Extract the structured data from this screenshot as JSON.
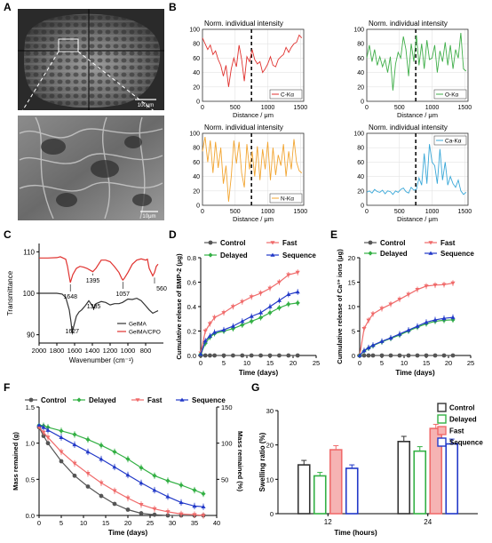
{
  "figure": {
    "panel_letters": [
      "A",
      "B",
      "C",
      "D",
      "E",
      "F",
      "G"
    ],
    "sem": {
      "scale_top": "100μm",
      "scale_bottom": "10μm"
    }
  },
  "chart_data": [
    {
      "panel": "B",
      "type": "line",
      "title": "Norm. individual intensity",
      "legend": "C-Kα",
      "color": "#e0322f",
      "xlabel": "Distance / μm",
      "xlim": [
        0,
        1550
      ],
      "ylim": [
        0,
        100
      ],
      "xticks": [
        0,
        500,
        1000,
        1500
      ],
      "yticks": [
        0,
        20,
        40,
        60,
        80,
        100
      ],
      "divider_x": 750,
      "x": [
        0,
        40,
        80,
        120,
        160,
        200,
        240,
        280,
        320,
        360,
        400,
        440,
        480,
        520,
        560,
        600,
        640,
        680,
        720,
        760,
        800,
        840,
        880,
        920,
        960,
        1000,
        1040,
        1080,
        1120,
        1160,
        1200,
        1240,
        1280,
        1320,
        1360,
        1400,
        1440,
        1480,
        1520
      ],
      "y": [
        88,
        80,
        72,
        78,
        65,
        70,
        58,
        50,
        35,
        50,
        20,
        45,
        60,
        48,
        78,
        58,
        28,
        62,
        55,
        72,
        58,
        52,
        55,
        40,
        45,
        52,
        62,
        50,
        48,
        58,
        62,
        65,
        75,
        68,
        75,
        80,
        82,
        92,
        88
      ]
    },
    {
      "panel": "B",
      "type": "line",
      "title": "Norm. individual intensity",
      "legend": "O-Kα",
      "color": "#3fae49",
      "xlabel": "Distance / μm",
      "xlim": [
        0,
        1550
      ],
      "ylim": [
        0,
        100
      ],
      "xticks": [
        0,
        500,
        1000,
        1500
      ],
      "yticks": [
        0,
        20,
        40,
        60,
        80,
        100
      ],
      "divider_x": 750,
      "x": [
        0,
        40,
        80,
        120,
        160,
        200,
        240,
        280,
        320,
        360,
        400,
        440,
        480,
        520,
        560,
        600,
        640,
        680,
        720,
        760,
        800,
        840,
        880,
        920,
        960,
        1000,
        1040,
        1080,
        1120,
        1160,
        1200,
        1240,
        1280,
        1320,
        1360,
        1400,
        1440,
        1480,
        1520
      ],
      "y": [
        60,
        78,
        55,
        72,
        50,
        62,
        48,
        58,
        40,
        62,
        15,
        52,
        68,
        60,
        90,
        72,
        35,
        80,
        55,
        92,
        50,
        80,
        45,
        85,
        58,
        60,
        78,
        40,
        70,
        55,
        82,
        50,
        78,
        45,
        72,
        60,
        95,
        45,
        42
      ]
    },
    {
      "panel": "B",
      "type": "line",
      "title": "Norm. individual intensity",
      "legend": "N-Kα",
      "color": "#f2a531",
      "xlabel": "Distance / μm",
      "xlim": [
        0,
        1550
      ],
      "ylim": [
        0,
        100
      ],
      "xticks": [
        0,
        500,
        1000,
        1500
      ],
      "yticks": [
        0,
        20,
        40,
        60,
        80,
        100
      ],
      "divider_x": 750,
      "x": [
        0,
        40,
        80,
        120,
        160,
        200,
        240,
        280,
        320,
        360,
        400,
        440,
        480,
        520,
        560,
        600,
        640,
        680,
        720,
        760,
        800,
        840,
        880,
        920,
        960,
        1000,
        1040,
        1080,
        1120,
        1160,
        1200,
        1240,
        1280,
        1320,
        1360,
        1400,
        1440,
        1480,
        1520
      ],
      "y": [
        75,
        95,
        60,
        90,
        45,
        88,
        52,
        80,
        30,
        55,
        5,
        40,
        90,
        58,
        88,
        45,
        25,
        85,
        50,
        75,
        40,
        82,
        35,
        78,
        50,
        88,
        35,
        80,
        42,
        70,
        55,
        85,
        40,
        75,
        50,
        92,
        60,
        48,
        45
      ]
    },
    {
      "panel": "B",
      "type": "line",
      "title": "Norm. individual intensity",
      "legend": "Ca-Kα",
      "color": "#3aa8d8",
      "xlabel": "Distance / μm",
      "xlim": [
        0,
        1550
      ],
      "ylim": [
        0,
        100
      ],
      "xticks": [
        0,
        500,
        1000,
        1500
      ],
      "yticks": [
        0,
        20,
        40,
        60,
        80,
        100
      ],
      "divider_x": 750,
      "x": [
        0,
        40,
        80,
        120,
        160,
        200,
        240,
        280,
        320,
        360,
        400,
        440,
        480,
        520,
        560,
        600,
        640,
        680,
        720,
        760,
        800,
        840,
        880,
        920,
        960,
        1000,
        1040,
        1080,
        1120,
        1160,
        1200,
        1240,
        1280,
        1320,
        1360,
        1400,
        1440,
        1480,
        1520
      ],
      "y": [
        18,
        20,
        17,
        22,
        19,
        18,
        21,
        16,
        20,
        19,
        15,
        20,
        18,
        22,
        24,
        19,
        17,
        25,
        21,
        22,
        38,
        28,
        72,
        30,
        85,
        60,
        55,
        30,
        78,
        35,
        60,
        28,
        40,
        30,
        25,
        35,
        20,
        15,
        18
      ]
    },
    {
      "panel": "C",
      "type": "line",
      "xlabel": "Wavenumber (cm⁻¹)",
      "ylabel": "Transmittance",
      "xlim": [
        2000,
        600
      ],
      "ylim": [
        88,
        112
      ],
      "xticks": [
        2000,
        1800,
        1600,
        1400,
        1200,
        1000,
        800
      ],
      "yticks": [
        90,
        100,
        110
      ],
      "series": [
        {
          "name": "GelMA",
          "color": "#333333",
          "x": [
            2000,
            1900,
            1800,
            1740,
            1700,
            1660,
            1640,
            1627,
            1610,
            1580,
            1550,
            1520,
            1480,
            1440,
            1400,
            1385,
            1360,
            1300,
            1250,
            1200,
            1150,
            1100,
            1060,
            1000,
            950,
            900,
            850,
            800,
            760,
            720,
            690,
            660
          ],
          "y": [
            100,
            100,
            100,
            99.8,
            99,
            96,
            93,
            90.5,
            92,
            94.5,
            95.5,
            96,
            97,
            98.2,
            97,
            96.3,
            97.5,
            98,
            97.8,
            97.2,
            97.5,
            97.5,
            97.8,
            98.6,
            98.5,
            98.8,
            98.2,
            97,
            96,
            95.2,
            95.5,
            95.8
          ]
        },
        {
          "name": "GelMA/CPO",
          "color": "#e0322f",
          "x": [
            2000,
            1900,
            1800,
            1760,
            1700,
            1680,
            1660,
            1648,
            1620,
            1580,
            1540,
            1500,
            1460,
            1420,
            1395,
            1360,
            1300,
            1250,
            1200,
            1150,
            1100,
            1070,
            1057,
            1040,
            1000,
            950,
            900,
            850,
            800,
            780,
            760,
            720,
            700,
            680,
            660
          ],
          "y": [
            108.5,
            108.5,
            108.6,
            108.8,
            108.2,
            106.5,
            104,
            102.6,
            104.5,
            106,
            106.5,
            106.3,
            106,
            105.5,
            105.2,
            106,
            108,
            108,
            107.6,
            106.4,
            105,
            103.6,
            103.2,
            103.6,
            105,
            107,
            108,
            108.3,
            108,
            108.2,
            106,
            104.2,
            105,
            106.5,
            107
          ]
        }
      ],
      "annotations": [
        "1648",
        "1395",
        "1057",
        "560",
        "1627",
        "1385"
      ],
      "legend": [
        "GelMA",
        "GelMA/CPO"
      ]
    },
    {
      "panel": "D",
      "type": "line",
      "xlabel": "Time (days)",
      "ylabel": "Cumulative release of BMP-2 (μg)",
      "xlim": [
        0,
        25
      ],
      "ylim": [
        0,
        0.8
      ],
      "xticks": [
        0,
        5,
        10,
        15,
        20,
        25
      ],
      "yticks": [
        0.0,
        0.2,
        0.4,
        0.6,
        0.8
      ],
      "x": [
        0,
        1,
        2,
        3,
        5,
        7,
        9,
        11,
        13,
        15,
        17,
        19,
        21
      ],
      "series": [
        {
          "name": "Control",
          "color": "#555555",
          "values": [
            0,
            0,
            0,
            0,
            0,
            0,
            0,
            0,
            0,
            0,
            0,
            0,
            0
          ]
        },
        {
          "name": "Fast",
          "color": "#f06b6b",
          "values": [
            0.02,
            0.2,
            0.26,
            0.31,
            0.35,
            0.4,
            0.44,
            0.48,
            0.51,
            0.55,
            0.6,
            0.66,
            0.68
          ]
        },
        {
          "name": "Delayed",
          "color": "#33b044",
          "values": [
            0.01,
            0.1,
            0.15,
            0.18,
            0.2,
            0.22,
            0.25,
            0.28,
            0.31,
            0.35,
            0.39,
            0.42,
            0.43
          ]
        },
        {
          "name": "Sequence",
          "color": "#2239c8",
          "values": [
            0.01,
            0.12,
            0.16,
            0.19,
            0.21,
            0.24,
            0.28,
            0.32,
            0.35,
            0.4,
            0.45,
            0.5,
            0.52
          ]
        }
      ],
      "legend": [
        "Control",
        "Fast",
        "Delayed",
        "Sequence"
      ]
    },
    {
      "panel": "E",
      "type": "line",
      "xlabel": "Time (days)",
      "ylabel": "Cumulative release of Ca²⁺ ions (μg)",
      "xlim": [
        0,
        25
      ],
      "ylim": [
        0,
        20
      ],
      "xticks": [
        0,
        5,
        10,
        15,
        20,
        25
      ],
      "yticks": [
        0,
        5,
        10,
        15,
        20
      ],
      "x": [
        0,
        1,
        2,
        3,
        5,
        7,
        9,
        11,
        13,
        15,
        17,
        19,
        21
      ],
      "series": [
        {
          "name": "Control",
          "color": "#555555",
          "values": [
            0,
            0,
            0,
            0,
            0,
            0,
            0,
            0,
            0,
            0,
            0,
            0,
            0
          ]
        },
        {
          "name": "Fast",
          "color": "#f06b6b",
          "values": [
            0,
            5.5,
            7.2,
            8.5,
            9.6,
            10.5,
            11.5,
            12.5,
            13.5,
            14.2,
            14.4,
            14.5,
            14.8
          ]
        },
        {
          "name": "Delayed",
          "color": "#33b044",
          "values": [
            0,
            0.9,
            1.5,
            2,
            2.8,
            3.5,
            4.2,
            5,
            5.8,
            6.5,
            7,
            7.2,
            7.3
          ]
        },
        {
          "name": "Sequence",
          "color": "#2239c8",
          "values": [
            0,
            1,
            1.6,
            2.1,
            2.9,
            3.6,
            4.4,
            5.2,
            6,
            6.8,
            7.3,
            7.6,
            7.8
          ]
        }
      ],
      "legend": [
        "Control",
        "Fast",
        "Delayed",
        "Sequence"
      ]
    },
    {
      "panel": "F",
      "type": "line",
      "xlabel": "Time (days)",
      "ylabel": "Mass remained (g)",
      "ylabel_right": "Mass remained (%)",
      "xlim": [
        0,
        40
      ],
      "ylim": [
        0,
        1.5
      ],
      "ylim_right": [
        0,
        150
      ],
      "xticks": [
        0,
        5,
        10,
        15,
        20,
        25,
        30,
        35,
        40
      ],
      "yticks": [
        0.0,
        0.5,
        1.0,
        1.5
      ],
      "yticks_right": [
        50,
        100,
        150
      ],
      "x": [
        0,
        1,
        2,
        5,
        8,
        11,
        14,
        17,
        20,
        23,
        26,
        29,
        32,
        35,
        37
      ],
      "series": [
        {
          "name": "Control",
          "color": "#555555",
          "values": [
            1.22,
            1.1,
            1.0,
            0.75,
            0.55,
            0.4,
            0.27,
            0.16,
            0.08,
            0.03,
            0.01,
            0,
            0,
            0,
            0
          ]
        },
        {
          "name": "Delayed",
          "color": "#33b044",
          "values": [
            1.25,
            1.24,
            1.22,
            1.17,
            1.12,
            1.05,
            0.97,
            0.88,
            0.78,
            0.66,
            0.55,
            0.48,
            0.42,
            0.35,
            0.3
          ]
        },
        {
          "name": "Fast",
          "color": "#f06b6b",
          "values": [
            1.22,
            1.15,
            1.08,
            0.88,
            0.72,
            0.58,
            0.45,
            0.34,
            0.24,
            0.15,
            0.09,
            0.05,
            0.02,
            0.01,
            0
          ]
        },
        {
          "name": "Sequence",
          "color": "#2239c8",
          "values": [
            1.25,
            1.22,
            1.18,
            1.08,
            0.98,
            0.88,
            0.78,
            0.67,
            0.56,
            0.45,
            0.35,
            0.26,
            0.18,
            0.13,
            0.12
          ]
        }
      ],
      "legend": [
        "Control",
        "Delayed",
        "Fast",
        "Sequence"
      ]
    },
    {
      "panel": "G",
      "type": "bar",
      "xlabel": "Time (hours)",
      "ylabel": "Swelling ratio (%)",
      "ylim": [
        0,
        30
      ],
      "yticks": [
        0,
        10,
        20,
        30
      ],
      "categories": [
        "12",
        "24"
      ],
      "series": [
        {
          "name": "Control",
          "color": "#333333",
          "values": [
            14.2,
            21.0
          ],
          "errors": [
            1.3,
            1.5
          ]
        },
        {
          "name": "Delayed",
          "color": "#33b044",
          "values": [
            11.0,
            18.2
          ],
          "errors": [
            1.0,
            1.3
          ]
        },
        {
          "name": "Fast",
          "color": "#f06b6b",
          "values": [
            18.6,
            24.8
          ],
          "errors": [
            1.2,
            1.2
          ]
        },
        {
          "name": "Sequence",
          "color": "#2239c8",
          "values": [
            13.2,
            20.3
          ],
          "errors": [
            1.0,
            1.4
          ]
        }
      ],
      "legend": [
        "Control",
        "Delayed",
        "Fast",
        "Sequence"
      ]
    }
  ]
}
